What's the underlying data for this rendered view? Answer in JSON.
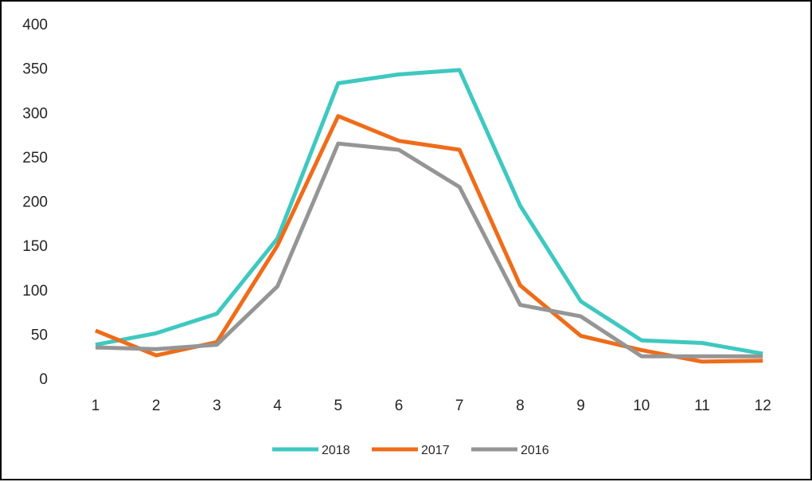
{
  "chart_data": {
    "type": "line",
    "title": "",
    "xlabel": "",
    "ylabel": "",
    "categories": [
      "1",
      "2",
      "3",
      "4",
      "5",
      "6",
      "7",
      "8",
      "9",
      "10",
      "11",
      "12"
    ],
    "ylim": [
      0,
      400
    ],
    "yticks": [
      "0",
      "50",
      "100",
      "150",
      "200",
      "250",
      "300",
      "350",
      "400"
    ],
    "grid": false,
    "legend_position": "bottom",
    "series": [
      {
        "name": "2018",
        "color": "#3ec8c0",
        "values": [
          38,
          51,
          73,
          158,
          333,
          343,
          348,
          195,
          87,
          43,
          40,
          28
        ]
      },
      {
        "name": "2017",
        "color": "#ee6c1a",
        "values": [
          54,
          26,
          41,
          150,
          296,
          268,
          258,
          105,
          48,
          32,
          19,
          20
        ]
      },
      {
        "name": "2016",
        "color": "#959595",
        "values": [
          35,
          33,
          38,
          104,
          265,
          258,
          216,
          83,
          70,
          25,
          25,
          25
        ]
      }
    ]
  }
}
